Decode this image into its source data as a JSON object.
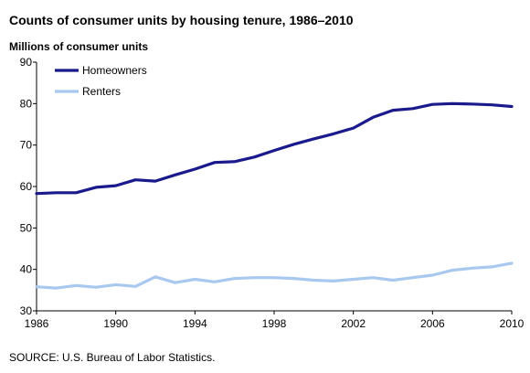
{
  "chart_data": {
    "type": "line",
    "title": "Counts of consumer units by housing tenure, 1986–2010",
    "ylabel": "Millions of consumer units",
    "xlabel": "",
    "source": "SOURCE: U.S. Bureau of Labor Statistics.",
    "x": [
      1986,
      1987,
      1988,
      1989,
      1990,
      1991,
      1992,
      1993,
      1994,
      1995,
      1996,
      1997,
      1998,
      1999,
      2000,
      2001,
      2002,
      2003,
      2004,
      2005,
      2006,
      2007,
      2008,
      2009,
      2010
    ],
    "xlim": [
      1986,
      2010
    ],
    "ylim": [
      30,
      90
    ],
    "x_ticks": [
      "1986",
      "1990",
      "1994",
      "1998",
      "2002",
      "2006",
      "2010"
    ],
    "y_ticks": [
      "30",
      "40",
      "50",
      "60",
      "70",
      "80",
      "90"
    ],
    "grid": false,
    "legend_position": "top-left",
    "series": [
      {
        "name": "Homeowners",
        "color": "#1a1a8c",
        "values": [
          58.3,
          58.5,
          58.5,
          59.8,
          60.2,
          61.6,
          61.3,
          62.8,
          64.2,
          65.8,
          66.0,
          67.1,
          68.7,
          70.2,
          71.5,
          72.7,
          74.1,
          76.7,
          78.4,
          78.8,
          79.8,
          80.0,
          79.9,
          79.7,
          79.3
        ]
      },
      {
        "name": "Renters",
        "color": "#a8c8f0",
        "values": [
          35.8,
          35.5,
          36.1,
          35.7,
          36.3,
          35.9,
          38.2,
          36.8,
          37.6,
          37.0,
          37.8,
          38.0,
          38.0,
          37.8,
          37.4,
          37.2,
          37.6,
          38.0,
          37.4,
          38.0,
          38.6,
          39.8,
          40.3,
          40.6,
          41.5
        ]
      }
    ]
  }
}
